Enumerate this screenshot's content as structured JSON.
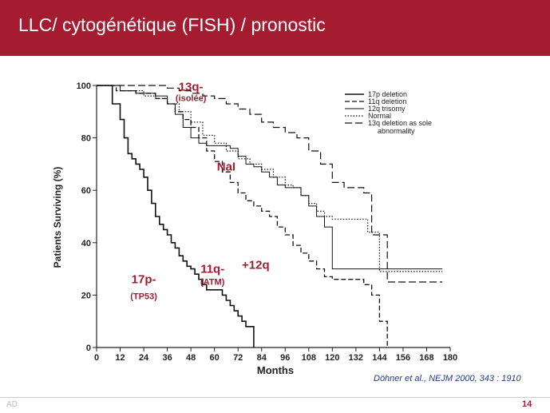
{
  "slide": {
    "title": "LLC/ cytogénétique  (FISH) / pronostic",
    "citation": "Döhner et al., NEJM 2000, 343 : 1910",
    "footer_left": "AD",
    "page_number": "14"
  },
  "colors": {
    "title_bar": "#a51c30",
    "annotation": "#a51c30",
    "citation": "#1f3c88"
  },
  "chart_data": {
    "type": "line",
    "xlabel": "Months",
    "ylabel": "Patients Surviving (%)",
    "xlim": [
      0,
      180
    ],
    "ylim": [
      0,
      100
    ],
    "xticks": [
      0,
      12,
      24,
      36,
      48,
      60,
      72,
      84,
      96,
      108,
      120,
      132,
      144,
      156,
      168,
      180
    ],
    "yticks": [
      0,
      20,
      40,
      60,
      80,
      100
    ],
    "legend_position": "top-right",
    "grid": false,
    "series": [
      {
        "name": "17p deletion",
        "dash": "solid",
        "width": 1.6,
        "x": [
          0,
          8,
          12,
          14,
          16,
          18,
          20,
          22,
          24,
          26,
          28,
          30,
          32,
          34,
          36,
          38,
          40,
          42,
          44,
          46,
          48,
          50,
          52,
          54,
          56,
          58,
          60,
          62,
          64,
          66,
          68,
          70,
          72,
          74,
          76,
          78,
          80
        ],
        "y": [
          100,
          93,
          87,
          80,
          74,
          72,
          70,
          68,
          65,
          60,
          55,
          50,
          47,
          45,
          43,
          40,
          38,
          35,
          33,
          31,
          30,
          28,
          26,
          24,
          22,
          22,
          22,
          22,
          20,
          18,
          16,
          14,
          12,
          10,
          8,
          8,
          0
        ]
      },
      {
        "name": "11q deletion",
        "dash": "6,3",
        "width": 1.3,
        "x": [
          0,
          10,
          20,
          30,
          36,
          40,
          44,
          48,
          52,
          56,
          60,
          64,
          68,
          72,
          76,
          80,
          84,
          88,
          92,
          96,
          100,
          104,
          108,
          112,
          116,
          120,
          124,
          128,
          132,
          136,
          140,
          144,
          148
        ],
        "y": [
          100,
          98,
          97,
          95,
          93,
          90,
          87,
          84,
          80,
          75,
          71,
          67,
          63,
          59,
          56,
          54,
          52,
          50,
          46,
          43,
          39,
          36,
          33,
          30,
          27,
          26,
          26,
          26,
          26,
          24,
          20,
          10,
          0
        ]
      },
      {
        "name": "12q trisomy",
        "dash": "solid",
        "width": 1,
        "x": [
          0,
          12,
          20,
          30,
          36,
          40,
          44,
          48,
          52,
          56,
          60,
          64,
          68,
          72,
          76,
          80,
          84,
          88,
          92,
          96,
          100,
          104,
          108,
          112,
          116,
          120,
          176
        ],
        "y": [
          100,
          98,
          97,
          96,
          93,
          89,
          84,
          80,
          78,
          77,
          77,
          77,
          76,
          73,
          70,
          69,
          67,
          65,
          62,
          61,
          61,
          58,
          54,
          50,
          46,
          30,
          30
        ]
      },
      {
        "name": "Normal",
        "dash": "1.5,2",
        "width": 1.2,
        "x": [
          0,
          12,
          24,
          30,
          36,
          42,
          48,
          54,
          60,
          66,
          72,
          78,
          84,
          90,
          96,
          100,
          104,
          108,
          112,
          116,
          120,
          126,
          132,
          138,
          144,
          176
        ],
        "y": [
          100,
          98,
          96,
          95,
          93,
          90,
          86,
          81,
          78,
          75,
          72,
          70,
          68,
          65,
          62,
          61,
          58,
          55,
          52,
          50,
          49,
          49,
          49,
          44,
          29,
          29
        ]
      },
      {
        "name": "13q deletion as sole abnormality",
        "dash": "9,4",
        "width": 1.2,
        "x": [
          0,
          12,
          24,
          36,
          42,
          48,
          54,
          60,
          66,
          72,
          78,
          84,
          90,
          96,
          102,
          108,
          114,
          120,
          126,
          132,
          136,
          140,
          144,
          148,
          176
        ],
        "y": [
          100,
          100,
          100,
          99,
          98,
          97,
          96,
          95,
          93,
          91,
          89,
          86,
          84,
          82,
          80,
          75,
          70,
          63,
          61,
          61,
          59,
          43,
          43,
          25,
          25
        ]
      }
    ],
    "annotations": [
      {
        "text": "13q-",
        "x": 48,
        "y": 98,
        "size": 15
      },
      {
        "text": "(isolée)",
        "x": 48,
        "y": 94,
        "size": 11
      },
      {
        "text": "NaI",
        "x": 66,
        "y": 67.5,
        "size": 15
      },
      {
        "text": "+12q",
        "x": 81,
        "y": 30,
        "size": 15
      },
      {
        "text": "11q-",
        "x": 59,
        "y": 28.5,
        "size": 15
      },
      {
        "text": "(ATM)",
        "x": 59,
        "y": 24,
        "size": 11
      },
      {
        "text": "17p-",
        "x": 24,
        "y": 24.5,
        "size": 15
      },
      {
        "text": "(TP53)",
        "x": 24,
        "y": 18.5,
        "size": 11
      }
    ]
  }
}
